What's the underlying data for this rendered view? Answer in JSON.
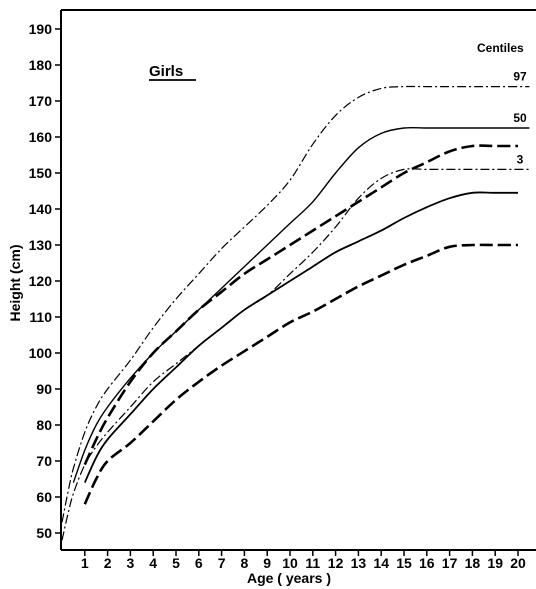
{
  "chart_data": {
    "type": "line",
    "title": "",
    "xlabel": "Age ( years )",
    "ylabel": "Height (cm)",
    "xlim": [
      0,
      20
    ],
    "ylim": [
      47,
      197
    ],
    "x_ticks": [
      "1",
      "2",
      "3",
      "4",
      "5",
      "6",
      "7",
      "8",
      "9",
      "10",
      "11",
      "12",
      "13",
      "14",
      "15",
      "16",
      "17",
      "18",
      "19",
      "20"
    ],
    "y_ticks": [
      "50",
      "60",
      "70",
      "80",
      "90",
      "100",
      "110",
      "120",
      "130",
      "140",
      "150",
      "160",
      "170",
      "180",
      "190"
    ],
    "group_label": "Girls",
    "legend_title": "Centiles",
    "grid": false,
    "series": [
      {
        "name": "97",
        "group": "female",
        "line_style": "dash-dot",
        "x": [
          0,
          0.25,
          0.5,
          1,
          1.5,
          2,
          3,
          4,
          5,
          6,
          7,
          8,
          9,
          10,
          11,
          12,
          13,
          14,
          15,
          16,
          17,
          18,
          19,
          20.5
        ],
        "y": [
          53,
          61,
          68,
          78,
          85,
          90,
          98,
          107,
          115,
          122,
          129,
          135,
          141,
          148,
          158,
          166,
          171,
          173.5,
          174,
          174,
          174,
          174,
          174,
          174
        ]
      },
      {
        "name": "50",
        "group": "female",
        "line_style": "solid",
        "x": [
          0.5,
          1,
          1.5,
          2,
          3,
          4,
          5,
          6,
          7,
          8,
          9,
          10,
          11,
          12,
          13,
          14,
          15,
          16,
          17,
          18,
          19,
          20.5
        ],
        "y": [
          64,
          73,
          80,
          85,
          93,
          100,
          106,
          112,
          118,
          124,
          130,
          136,
          142,
          150,
          157,
          161,
          162.5,
          162.5,
          162.5,
          162.5,
          162.5,
          162.5
        ]
      },
      {
        "name": "3",
        "group": "female",
        "line_style": "dash-dot",
        "x": [
          0,
          0.25,
          0.5,
          1,
          1.5,
          2,
          3,
          4,
          5,
          6,
          7,
          8,
          9,
          10,
          11,
          12,
          13,
          14,
          15,
          16,
          17,
          18,
          19,
          20.5
        ],
        "y": [
          48,
          55,
          61,
          69,
          74,
          78,
          85,
          92,
          97,
          102,
          107,
          112,
          116,
          122,
          128,
          135,
          143,
          148.5,
          151,
          151,
          151,
          151,
          151,
          151
        ]
      },
      {
        "name": "",
        "group": "male",
        "line_style": "dash",
        "x": [
          1,
          1.5,
          2,
          3,
          4,
          5,
          6,
          7,
          8,
          9,
          10,
          11,
          12,
          13,
          14,
          15,
          16,
          17,
          18,
          19,
          20
        ],
        "y": [
          69,
          76,
          82,
          92,
          100,
          106,
          112,
          117,
          122,
          126,
          130,
          134,
          138,
          142,
          146,
          150,
          153,
          156,
          157.5,
          157.5,
          157.5
        ]
      },
      {
        "name": "",
        "group": "male",
        "line_style": "solid",
        "x": [
          1,
          1.5,
          2,
          3,
          4,
          5,
          6,
          7,
          8,
          9,
          10,
          11,
          12,
          13,
          14,
          15,
          16,
          17,
          18,
          19,
          20
        ],
        "y": [
          64,
          71,
          76,
          83,
          90,
          96,
          102,
          107,
          112,
          116,
          120,
          124,
          128,
          131,
          134,
          137.5,
          140.5,
          143,
          144.5,
          144.5,
          144.5
        ]
      },
      {
        "name": "",
        "group": "male",
        "line_style": "dash",
        "x": [
          1,
          1.5,
          2,
          3,
          4,
          5,
          6,
          7,
          8,
          9,
          10,
          11,
          12,
          13,
          14,
          15,
          16,
          17,
          18,
          19,
          20
        ],
        "y": [
          58,
          65,
          70,
          75,
          81,
          87,
          92,
          96.5,
          100.5,
          104.5,
          108.5,
          111.5,
          115,
          118.5,
          121.5,
          124.5,
          127,
          129.5,
          130,
          130,
          130
        ]
      }
    ]
  }
}
